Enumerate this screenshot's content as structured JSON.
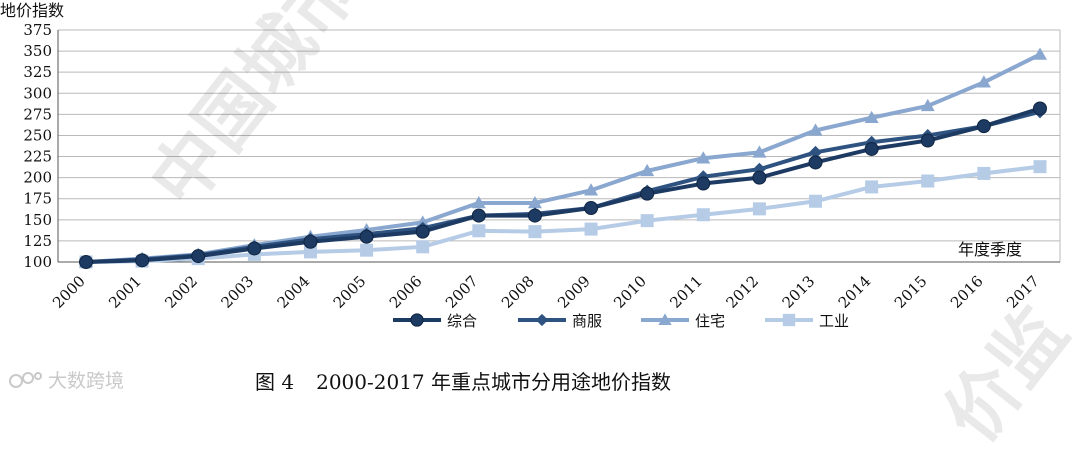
{
  "watermark": {
    "text": "大数跨境",
    "stamp_left": "中国城市地",
    "stamp_right": "价监"
  },
  "caption": {
    "figure_no": "图 4",
    "title": "2000-2017 年重点城市分用途地价指数"
  },
  "colors": {
    "综合": "#1d3a63",
    "商服": "#2f5381",
    "住宅": "#8aa7cf",
    "工业": "#b5cbe6",
    "grid": "#b9b9b9",
    "axis": "#555555"
  },
  "chart_data": {
    "type": "line",
    "ylabel": "地价指数",
    "xlabel": "年度季度",
    "ylim": [
      100,
      375
    ],
    "yticks": [
      100,
      125,
      150,
      175,
      200,
      225,
      250,
      275,
      300,
      325,
      350,
      375
    ],
    "grid": true,
    "legend_position": "bottom",
    "categories": [
      "2000",
      "2001",
      "2002",
      "2003",
      "2004",
      "2005",
      "2006",
      "2007",
      "2008",
      "2009",
      "2010",
      "2011",
      "2012",
      "2013",
      "2014",
      "2015",
      "2016",
      "2017"
    ],
    "series": [
      {
        "name": "综合",
        "marker": "circle",
        "values": [
          100,
          102,
          107,
          116,
          124,
          130,
          136,
          155,
          155,
          164,
          181,
          193,
          200,
          218,
          234,
          244,
          261,
          282
        ]
      },
      {
        "name": "商服",
        "marker": "diamond",
        "values": [
          100,
          103,
          108,
          118,
          127,
          133,
          140,
          155,
          157,
          164,
          184,
          201,
          210,
          230,
          242,
          250,
          261,
          278
        ]
      },
      {
        "name": "住宅",
        "marker": "triangle",
        "values": [
          100,
          104,
          109,
          120,
          130,
          138,
          147,
          170,
          170,
          185,
          208,
          223,
          230,
          256,
          271,
          285,
          313,
          346
        ]
      },
      {
        "name": "工业",
        "marker": "square",
        "values": [
          100,
          101,
          104,
          109,
          112,
          114,
          118,
          137,
          136,
          139,
          149,
          156,
          163,
          172,
          189,
          196,
          205,
          213
        ]
      }
    ]
  }
}
